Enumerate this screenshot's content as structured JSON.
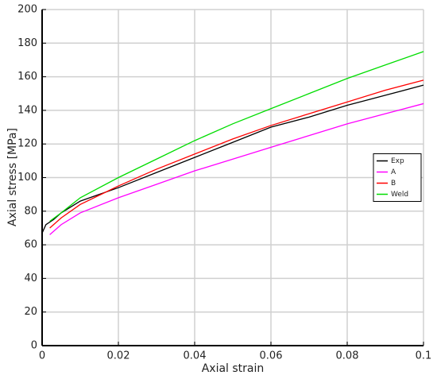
{
  "chart_data": {
    "type": "line",
    "x_label": "Axial strain",
    "y_label": "Axial stress [MPa]",
    "xlim": [
      0,
      0.1
    ],
    "ylim": [
      0,
      200
    ],
    "xticks": [
      0,
      0.02,
      0.04,
      0.06,
      0.08,
      0.1
    ],
    "yticks": [
      0,
      20,
      40,
      60,
      80,
      100,
      120,
      140,
      160,
      180,
      200
    ],
    "grid": true,
    "legend": "right",
    "series": [
      {
        "name": "Exp",
        "color": "#000000",
        "x": [
          0,
          0.001,
          0.003,
          0.005,
          0.01,
          0.015,
          0.02,
          0.03,
          0.04,
          0.05,
          0.06,
          0.07,
          0.08,
          0.09,
          0.1
        ],
        "values": [
          67,
          72,
          75,
          79,
          86,
          90,
          94,
          103,
          112,
          121,
          130,
          136,
          143,
          149,
          155
        ]
      },
      {
        "name": "A",
        "color": "#ff00ff",
        "x": [
          0.002,
          0.005,
          0.01,
          0.02,
          0.03,
          0.04,
          0.05,
          0.06,
          0.07,
          0.08,
          0.09,
          0.1
        ],
        "values": [
          66,
          72,
          79,
          88,
          96,
          104,
          111,
          118,
          125,
          132,
          138,
          144
        ]
      },
      {
        "name": "B",
        "color": "#ff0000",
        "x": [
          0.002,
          0.005,
          0.01,
          0.02,
          0.03,
          0.04,
          0.05,
          0.06,
          0.07,
          0.08,
          0.09,
          0.1
        ],
        "values": [
          70,
          76,
          84,
          95,
          105,
          114,
          123,
          131,
          138,
          145,
          152,
          158
        ]
      },
      {
        "name": "Weld",
        "color": "#00dd00",
        "x": [
          0.002,
          0.005,
          0.01,
          0.02,
          0.03,
          0.04,
          0.05,
          0.06,
          0.07,
          0.08,
          0.09,
          0.1
        ],
        "values": [
          74,
          79,
          88,
          100,
          111,
          122,
          132,
          141,
          150,
          159,
          167,
          175
        ]
      }
    ]
  }
}
